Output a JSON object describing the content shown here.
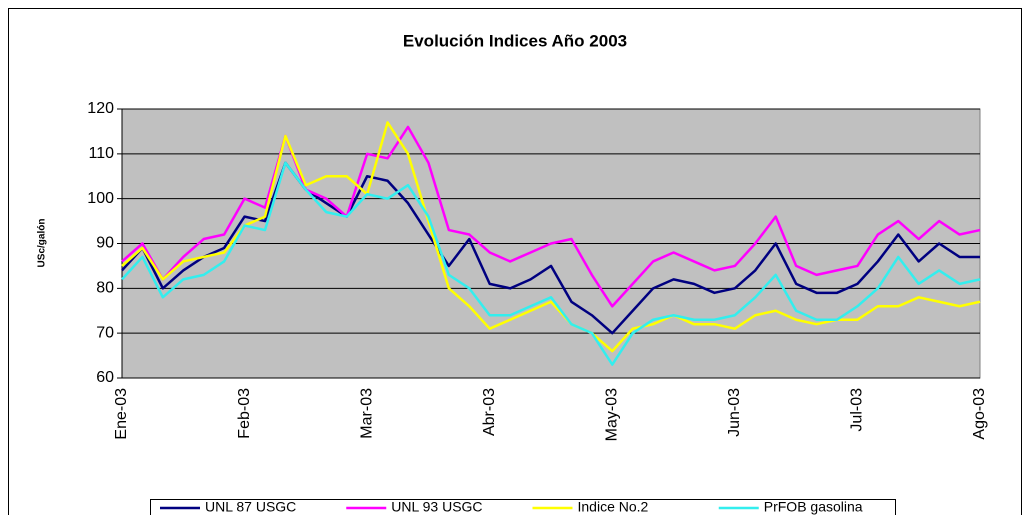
{
  "chart_data": {
    "type": "line",
    "title": "Evolución Indices Año 2003",
    "y_label": "USc/galón",
    "categories": [
      "Ene-03",
      null,
      null,
      null,
      null,
      null,
      "Feb-03",
      null,
      null,
      null,
      null,
      null,
      "Mar-03",
      null,
      null,
      null,
      null,
      null,
      "Abr-03",
      null,
      null,
      null,
      null,
      null,
      "May-03",
      null,
      null,
      null,
      null,
      null,
      "Jun-03",
      null,
      null,
      null,
      null,
      null,
      "Jul-03",
      null,
      null,
      null,
      null,
      null,
      "Ago-03"
    ],
    "series": [
      {
        "name": "UNL 87 USGC",
        "color": "#000080",
        "values": [
          84,
          89,
          80,
          84,
          87,
          89,
          96,
          95,
          108,
          102,
          99,
          96,
          105,
          104,
          99,
          92,
          85,
          91,
          81,
          80,
          82,
          85,
          77,
          74,
          70,
          75,
          80,
          82,
          81,
          79,
          80,
          84,
          90,
          81,
          79,
          79,
          81,
          86,
          92,
          86,
          90,
          87,
          87
        ]
      },
      {
        "name": "UNL 93 USGC",
        "color": "#ff00ff",
        "values": [
          86,
          90,
          82,
          87,
          91,
          92,
          100,
          98,
          114,
          102,
          100,
          96,
          110,
          109,
          116,
          108,
          93,
          92,
          88,
          86,
          88,
          90,
          91,
          83,
          76,
          81,
          86,
          88,
          86,
          84,
          85,
          90,
          96,
          85,
          83,
          84,
          85,
          92,
          95,
          91,
          95,
          92,
          93
        ]
      },
      {
        "name": "Indice No.2",
        "color": "#ffff00",
        "values": [
          85,
          89,
          82,
          86,
          87,
          88,
          94,
          96,
          114,
          103,
          105,
          105,
          101,
          117,
          110,
          95,
          80,
          76,
          71,
          73,
          75,
          77,
          72,
          70,
          66,
          71,
          72,
          74,
          72,
          72,
          71,
          74,
          75,
          73,
          72,
          73,
          73,
          76,
          76,
          78,
          77,
          76,
          77
        ]
      },
      {
        "name": "PrFOB gasolina",
        "color": "#33eeee",
        "values": [
          82,
          87,
          78,
          82,
          83,
          86,
          94,
          93,
          108,
          102,
          97,
          96,
          101,
          100,
          103,
          96,
          83,
          80,
          74,
          74,
          76,
          78,
          72,
          70,
          63,
          70,
          73,
          74,
          73,
          73,
          74,
          78,
          83,
          75,
          73,
          73,
          76,
          80,
          87,
          81,
          84,
          81,
          82
        ]
      }
    ],
    "ylim": [
      60,
      120
    ],
    "yticks": [
      60,
      70,
      80,
      90,
      100,
      110,
      120
    ],
    "grid": true,
    "plot_background": "#c0c0c0",
    "legend_position": "bottom"
  }
}
